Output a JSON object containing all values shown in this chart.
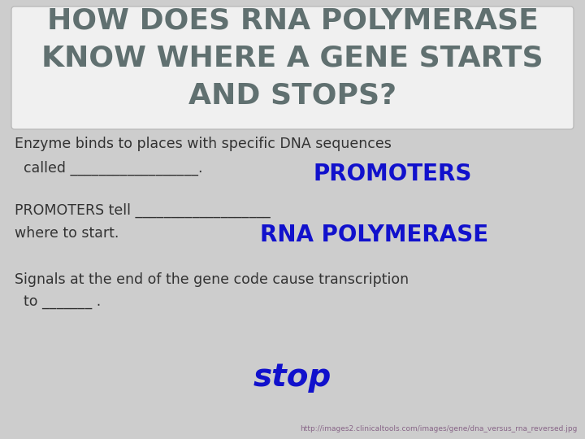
{
  "bg_color": "#cdcdcd",
  "title_box_color": "#f0f0f0",
  "title_box_edge": "#bbbbbb",
  "title_line1": "HOW DOES RNA POLYMERASE",
  "title_line2": "KNOW WHERE A GENE STARTS",
  "title_line3": "AND STOPS?",
  "title_color": "#607070",
  "title_fontsize": 26,
  "body_color": "#333333",
  "body_fontsize": 12.5,
  "line1": "Enzyme binds to places with specific DNA sequences",
  "line2": "  called __________________.",
  "answer1": "PROMOTERS",
  "answer1_color": "#1111cc",
  "answer1_fontsize": 20,
  "line3": "PROMOTERS tell ___________________",
  "line4": "where to start.",
  "answer2": "RNA POLYMERASE",
  "answer2_color": "#1111cc",
  "answer2_fontsize": 20,
  "line5": "Signals at the end of the gene code cause transcription",
  "line6": "  to _______ .",
  "answer3": "stop",
  "answer3_color": "#1111cc",
  "answer3_fontsize": 28,
  "footer": "http://images2.clinicaltools.com/images/gene/dna_versus_rna_reversed.jpg",
  "footer_color": "#886688",
  "footer_fontsize": 6.5
}
